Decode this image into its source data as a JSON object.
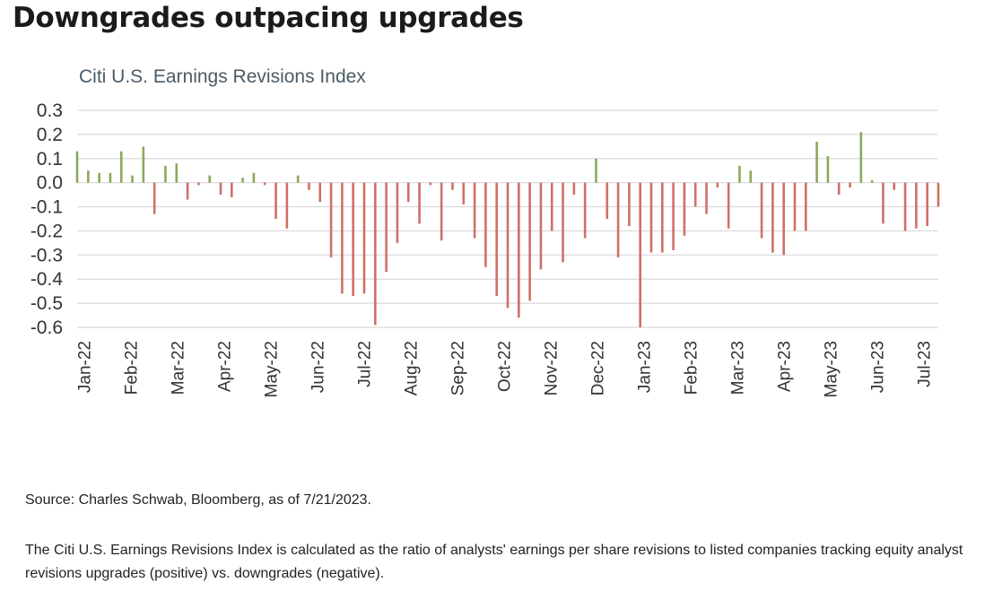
{
  "headline": "Downgrades outpacing upgrades",
  "source": "Source: Charles Schwab, Bloomberg, as of 7/21/2023.",
  "note": "The Citi U.S. Earnings Revisions Index is calculated as the ratio of analysts' earnings per share revisions to listed companies tracking equity analyst revisions upgrades (positive) vs. downgrades (negative).",
  "colors": {
    "positive": "#8aa95a",
    "negative": "#cf7068",
    "grid": "#d9d9d9"
  },
  "chart_data": {
    "type": "bar",
    "title": "Citi U.S. Earnings Revisions Index",
    "xlabel": "",
    "ylabel": "",
    "ylim": [
      -0.6,
      0.3
    ],
    "yticks": [
      "0.3",
      "0.2",
      "0.1",
      "0.0",
      "-0.1",
      "-0.2",
      "-0.3",
      "-0.4",
      "-0.5",
      "-0.6"
    ],
    "grid": true,
    "legend": "none",
    "x_tick_labels": [
      "Jan-22",
      "Feb-22",
      "Mar-22",
      "Apr-22",
      "May-22",
      "Jun-22",
      "Jul-22",
      "Aug-22",
      "Sep-22",
      "Oct-22",
      "Nov-22",
      "Dec-22",
      "Jan-23",
      "Feb-23",
      "Mar-23",
      "Apr-23",
      "May-23",
      "Jun-23",
      "Jul-23"
    ],
    "values": [
      0.13,
      0.05,
      0.04,
      0.04,
      0.13,
      0.03,
      0.15,
      -0.13,
      0.07,
      0.08,
      -0.07,
      -0.01,
      0.03,
      -0.05,
      -0.06,
      0.02,
      0.04,
      -0.01,
      -0.15,
      -0.19,
      0.03,
      -0.03,
      -0.08,
      -0.31,
      -0.46,
      -0.47,
      -0.46,
      -0.59,
      -0.37,
      -0.25,
      -0.08,
      -0.17,
      -0.01,
      -0.24,
      -0.03,
      -0.09,
      -0.23,
      -0.35,
      -0.47,
      -0.52,
      -0.56,
      -0.49,
      -0.36,
      -0.2,
      -0.33,
      -0.05,
      -0.23,
      0.1,
      -0.15,
      -0.31,
      -0.18,
      -0.6,
      -0.29,
      -0.29,
      -0.28,
      -0.22,
      -0.1,
      -0.13,
      -0.02,
      -0.19,
      0.07,
      0.05,
      -0.23,
      -0.29,
      -0.3,
      -0.2,
      -0.2,
      0.17,
      0.11,
      -0.05,
      -0.02,
      0.21,
      0.01,
      -0.17,
      -0.03,
      -0.2,
      -0.19,
      -0.18,
      -0.1
    ]
  }
}
